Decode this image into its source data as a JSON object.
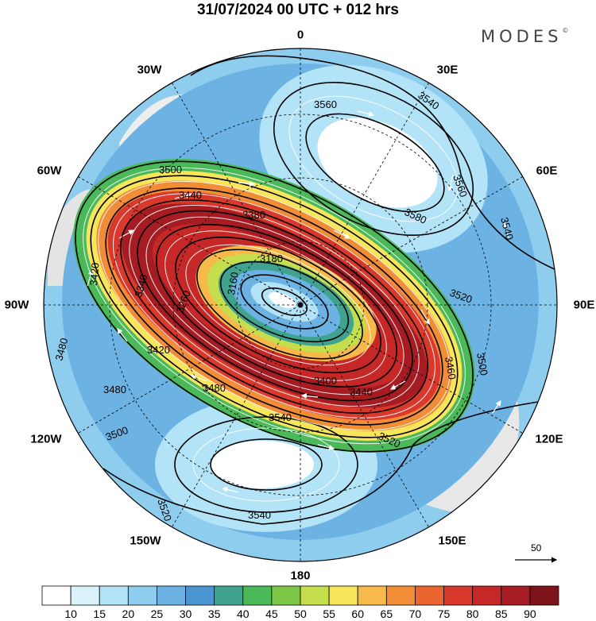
{
  "title": "31/07/2024  00 UTC  + 012 hrs",
  "brand": "MODES",
  "brand_mark": "©",
  "longitude_labels": [
    "0",
    "30E",
    "60E",
    "90E",
    "120E",
    "150E",
    "180",
    "150W",
    "120W",
    "90W",
    "60W",
    "30W"
  ],
  "vector_reference": "50",
  "colorbar": {
    "colors": [
      "#ffffff",
      "#d9f2fb",
      "#b3e3f7",
      "#8fcdef",
      "#6cb3e3",
      "#4b96d1",
      "#40a38f",
      "#4bb85a",
      "#7dc847",
      "#c5de4d",
      "#f7e55c",
      "#f6b94a",
      "#f18c37",
      "#ea6430",
      "#d9392c",
      "#c62828",
      "#a51c22",
      "#7d1419"
    ],
    "labels": [
      "10",
      "15",
      "20",
      "25",
      "30",
      "35",
      "40",
      "45",
      "50",
      "55",
      "60",
      "65",
      "70",
      "75",
      "80",
      "85",
      "90"
    ]
  },
  "contour_labels": [
    "3560",
    "3540",
    "3560",
    "3580",
    "3540",
    "3500",
    "3440",
    "3380",
    "3180",
    "3160",
    "3420",
    "3340",
    "3260",
    "3520",
    "3500",
    "3460",
    "3420",
    "3400",
    "3440",
    "3480",
    "3480",
    "3540",
    "3520",
    "3500",
    "3480",
    "3520",
    "3540"
  ]
}
